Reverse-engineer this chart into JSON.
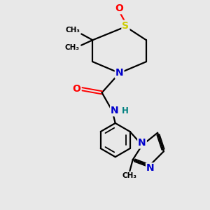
{
  "bg_color": "#e8e8e8",
  "atom_colors": {
    "N": "#0000cc",
    "O": "#ff0000",
    "S": "#cccc00",
    "H": "#008080"
  },
  "bond_color": "#000000",
  "bond_width": 1.6,
  "figsize": [
    3.0,
    3.0
  ],
  "dpi": 100,
  "xlim": [
    0,
    10
  ],
  "ylim": [
    0,
    10
  ]
}
